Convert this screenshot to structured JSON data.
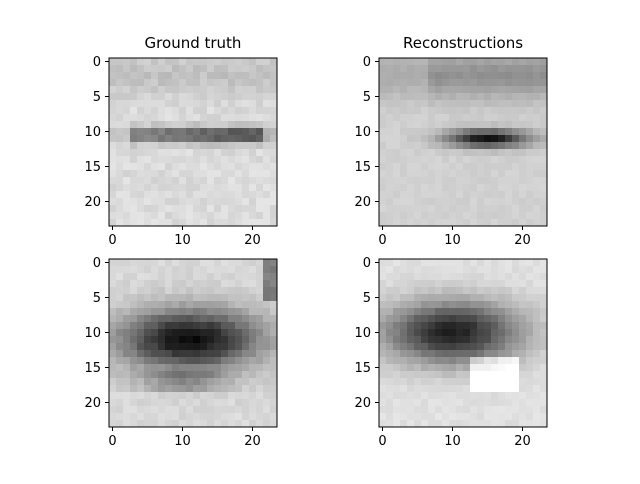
{
  "chart_data": [
    {
      "type": "heatmap",
      "title": "Ground truth",
      "xlabel": "",
      "ylabel": "",
      "xlim": [
        -0.5,
        23.5
      ],
      "ylim": [
        23.5,
        -0.5
      ],
      "xticks": [
        "0",
        "10",
        "20"
      ],
      "yticks": [
        "0",
        "5",
        "10",
        "15",
        "20"
      ],
      "colormap": "gray",
      "seed": 11
    },
    {
      "type": "heatmap",
      "title": "Reconstructions",
      "xlabel": "",
      "ylabel": "",
      "xlim": [
        -0.5,
        23.5
      ],
      "ylim": [
        23.5,
        -0.5
      ],
      "xticks": [
        "0",
        "10",
        "20"
      ],
      "yticks": [
        "0",
        "5",
        "10",
        "15",
        "20"
      ],
      "colormap": "gray",
      "seed": 12
    },
    {
      "type": "heatmap",
      "title": "",
      "xlabel": "",
      "ylabel": "",
      "xlim": [
        -0.5,
        23.5
      ],
      "ylim": [
        23.5,
        -0.5
      ],
      "xticks": [
        "0",
        "10",
        "20"
      ],
      "yticks": [
        "0",
        "5",
        "10",
        "15",
        "20"
      ],
      "colormap": "gray",
      "seed": 21
    },
    {
      "type": "heatmap",
      "title": "",
      "xlabel": "",
      "ylabel": "",
      "xlim": [
        -0.5,
        23.5
      ],
      "ylim": [
        23.5,
        -0.5
      ],
      "xticks": [
        "0",
        "10",
        "20"
      ],
      "yticks": [
        "0",
        "5",
        "10",
        "15",
        "20"
      ],
      "colormap": "gray",
      "seed": 22
    }
  ]
}
